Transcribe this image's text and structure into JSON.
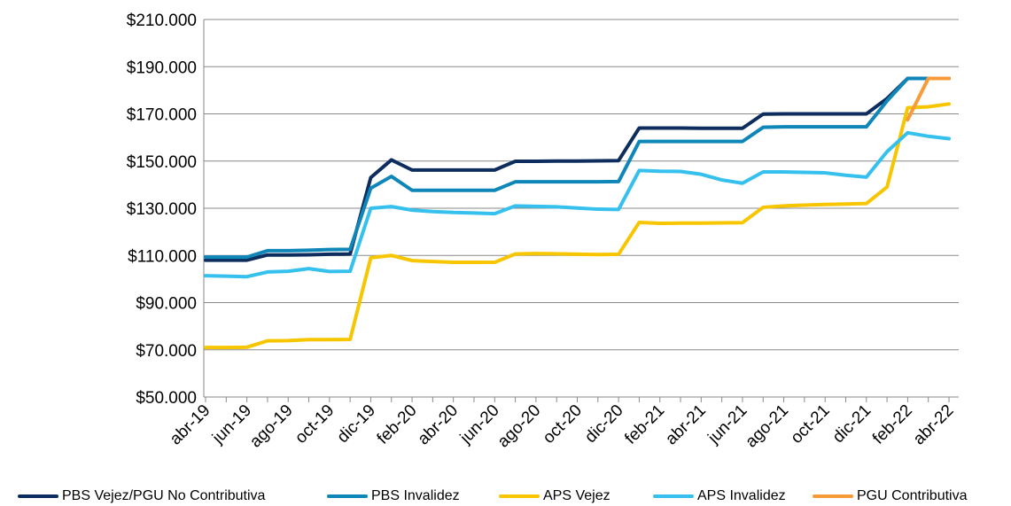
{
  "chart_data": {
    "type": "line",
    "title": "",
    "xlabel": "",
    "ylabel": "",
    "ylim": [
      50000,
      210000
    ],
    "y_ticks": [
      "$50.000",
      "$70.000",
      "$90.000",
      "$110.000",
      "$130.000",
      "$150.000",
      "$170.000",
      "$190.000",
      "$210.000"
    ],
    "x_tick_labels": [
      "abr-19",
      "jun-19",
      "ago-19",
      "oct-19",
      "dic-19",
      "feb-20",
      "abr-20",
      "jun-20",
      "ago-20",
      "oct-20",
      "dic-20",
      "feb-21",
      "abr-21",
      "jun-21",
      "ago-21",
      "oct-21",
      "dic-21",
      "feb-22",
      "abr-22"
    ],
    "grid": "horizontal",
    "legend_position": "bottom",
    "x": [
      "abr-19",
      "may-19",
      "jun-19",
      "jul-19",
      "ago-19",
      "sep-19",
      "oct-19",
      "nov-19",
      "dic-19",
      "ene-20",
      "feb-20",
      "mar-20",
      "abr-20",
      "may-20",
      "jun-20",
      "jul-20",
      "ago-20",
      "sep-20",
      "oct-20",
      "nov-20",
      "dic-20",
      "ene-21",
      "feb-21",
      "mar-21",
      "abr-21",
      "may-21",
      "jun-21",
      "jul-21",
      "ago-21",
      "sep-21",
      "oct-21",
      "nov-21",
      "dic-21",
      "ene-22",
      "feb-22",
      "mar-22",
      "abr-22"
    ],
    "series": [
      {
        "name": "PBS Vejez/PGU No Contributiva",
        "color": "#0d2d5e",
        "values": [
          108000,
          108000,
          108000,
          110200,
          110200,
          110300,
          110500,
          110600,
          143000,
          150500,
          146200,
          146200,
          146200,
          146200,
          146200,
          149900,
          149900,
          150000,
          150000,
          150100,
          150200,
          164000,
          164000,
          164000,
          163900,
          163900,
          163900,
          169900,
          170000,
          170000,
          170000,
          170000,
          170000,
          176500,
          185000,
          185000,
          185000
        ]
      },
      {
        "name": "PBS Invalidez",
        "color": "#0e86b8",
        "values": [
          109300,
          109300,
          109300,
          112000,
          112000,
          112200,
          112500,
          112600,
          138500,
          143500,
          137600,
          137600,
          137600,
          137600,
          137600,
          141200,
          141200,
          141200,
          141200,
          141200,
          141300,
          158300,
          158300,
          158300,
          158300,
          158300,
          158300,
          164300,
          164500,
          164500,
          164500,
          164500,
          164500,
          175500,
          185000,
          185000,
          185000
        ]
      },
      {
        "name": "APS Vejez",
        "color": "#f7c600",
        "values": [
          71000,
          71000,
          71100,
          73800,
          73900,
          74300,
          74300,
          74400,
          109000,
          110000,
          107800,
          107400,
          107100,
          107100,
          107100,
          110600,
          110800,
          110700,
          110500,
          110400,
          110500,
          124000,
          123600,
          123700,
          123700,
          123800,
          123900,
          130400,
          131000,
          131300,
          131600,
          131800,
          132000,
          139000,
          172600,
          173000,
          174200
        ]
      },
      {
        "name": "APS Invalidez",
        "color": "#35c0ee",
        "values": [
          101400,
          101200,
          101000,
          103000,
          103300,
          104400,
          103200,
          103300,
          130000,
          130700,
          129200,
          128600,
          128200,
          128000,
          127700,
          131000,
          130800,
          130600,
          130100,
          129600,
          129500,
          146000,
          145700,
          145600,
          144400,
          142000,
          140600,
          145400,
          145400,
          145200,
          145000,
          144000,
          143200,
          154000,
          162000,
          160500,
          159500
        ]
      },
      {
        "name": "PGU Contributiva",
        "color": "#f79a3a",
        "values": [
          null,
          null,
          null,
          null,
          null,
          null,
          null,
          null,
          null,
          null,
          null,
          null,
          null,
          null,
          null,
          null,
          null,
          null,
          null,
          null,
          null,
          null,
          null,
          null,
          null,
          null,
          null,
          null,
          null,
          null,
          null,
          null,
          null,
          null,
          167500,
          185000,
          185000
        ]
      }
    ]
  }
}
